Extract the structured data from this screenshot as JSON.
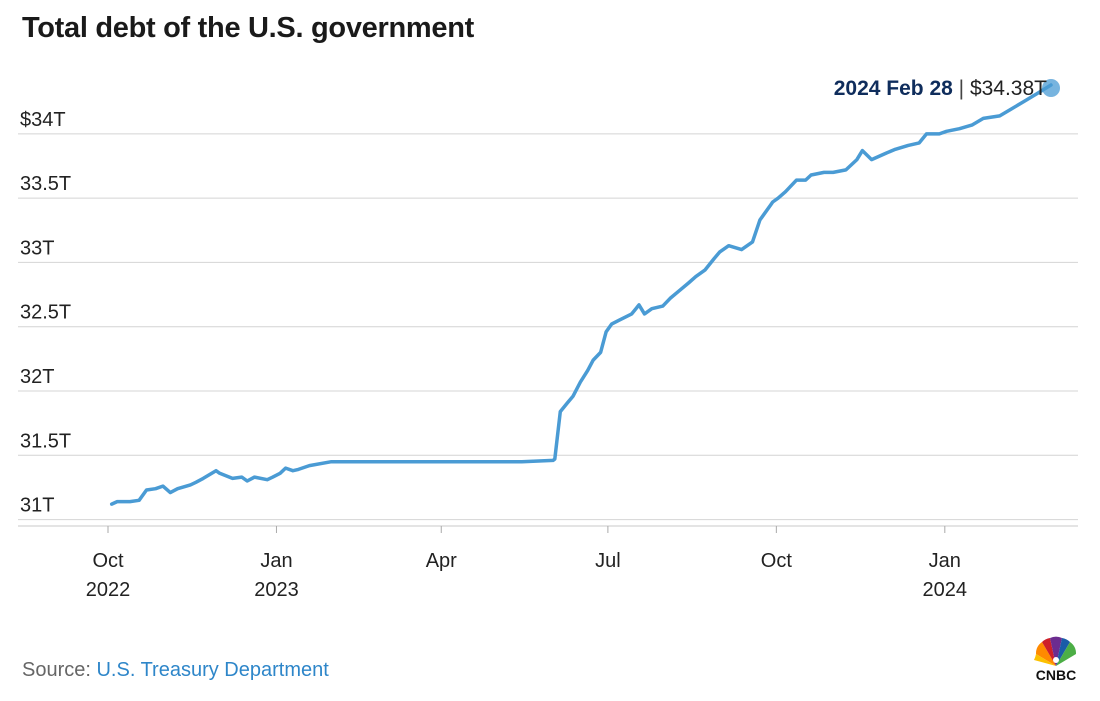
{
  "title": "Total debt of the U.S. government",
  "source": {
    "prefix": "Source: ",
    "link_text": "U.S. Treasury Department"
  },
  "logo": {
    "text": "CNBC",
    "icon": "peacock-icon"
  },
  "colors": {
    "line": "#4a9bd4",
    "grid": "#d4d4d4",
    "callout_date": "#0f2d5c",
    "source_link": "#2e86c9"
  },
  "chart_data": {
    "type": "line",
    "title": "Total debt of the U.S. government",
    "xlabel": "",
    "ylabel": "",
    "ylim": [
      30.95,
      34.45
    ],
    "xlim": [
      "2022-10-01",
      "2024-03-05"
    ],
    "yticks": [
      {
        "value": 31.0,
        "label": "31T"
      },
      {
        "value": 31.5,
        "label": "31.5T"
      },
      {
        "value": 32.0,
        "label": "32T"
      },
      {
        "value": 32.5,
        "label": "32.5T"
      },
      {
        "value": 33.0,
        "label": "33T"
      },
      {
        "value": 33.5,
        "label": "33.5T"
      },
      {
        "value": 34.0,
        "label": "$34T"
      }
    ],
    "xticks": [
      {
        "date": "2022-10-01",
        "label": "Oct",
        "year": "2022"
      },
      {
        "date": "2023-01-01",
        "label": "Jan",
        "year": "2023"
      },
      {
        "date": "2023-04-01",
        "label": "Apr",
        "year": ""
      },
      {
        "date": "2023-07-01",
        "label": "Jul",
        "year": ""
      },
      {
        "date": "2023-10-01",
        "label": "Oct",
        "year": ""
      },
      {
        "date": "2024-01-01",
        "label": "Jan",
        "year": "2024"
      }
    ],
    "grid": true,
    "series": [
      {
        "x": [
          "2022-10-03",
          "2022-10-06",
          "2022-10-13",
          "2022-10-18",
          "2022-10-22",
          "2022-10-27",
          "2022-10-31",
          "2022-11-04",
          "2022-11-08",
          "2022-11-15",
          "2022-11-18",
          "2022-11-22",
          "2022-11-29",
          "2022-12-01",
          "2022-12-08",
          "2022-12-13",
          "2022-12-16",
          "2022-12-20",
          "2022-12-27",
          "2022-12-30",
          "2023-01-03",
          "2023-01-06",
          "2023-01-10",
          "2023-01-13",
          "2023-01-19",
          "2023-01-31",
          "2023-02-15",
          "2023-03-01",
          "2023-03-15",
          "2023-04-01",
          "2023-04-15",
          "2023-05-01",
          "2023-05-15",
          "2023-06-01",
          "2023-06-02",
          "2023-06-05",
          "2023-06-09",
          "2023-06-12",
          "2023-06-16",
          "2023-06-20",
          "2023-06-23",
          "2023-06-27",
          "2023-06-30",
          "2023-07-03",
          "2023-07-07",
          "2023-07-14",
          "2023-07-18",
          "2023-07-21",
          "2023-07-25",
          "2023-07-31",
          "2023-08-04",
          "2023-08-09",
          "2023-08-14",
          "2023-08-18",
          "2023-08-23",
          "2023-08-28",
          "2023-08-31",
          "2023-09-05",
          "2023-09-12",
          "2023-09-18",
          "2023-09-22",
          "2023-09-28",
          "2023-09-29",
          "2023-10-02",
          "2023-10-06",
          "2023-10-12",
          "2023-10-17",
          "2023-10-20",
          "2023-10-27",
          "2023-11-01",
          "2023-11-08",
          "2023-11-14",
          "2023-11-17",
          "2023-11-22",
          "2023-11-30",
          "2023-12-05",
          "2023-12-12",
          "2023-12-18",
          "2023-12-22",
          "2023-12-29",
          "2024-01-02",
          "2024-01-09",
          "2024-01-16",
          "2024-01-22",
          "2024-01-31",
          "2024-02-06",
          "2024-02-13",
          "2024-02-20",
          "2024-02-28"
        ],
        "y": [
          31.12,
          31.14,
          31.14,
          31.15,
          31.23,
          31.24,
          31.26,
          31.21,
          31.24,
          31.27,
          31.29,
          31.32,
          31.38,
          31.36,
          31.32,
          31.33,
          31.3,
          31.33,
          31.31,
          31.33,
          31.36,
          31.4,
          31.38,
          31.39,
          31.42,
          31.45,
          31.45,
          31.45,
          31.45,
          31.45,
          31.45,
          31.45,
          31.45,
          31.46,
          31.47,
          31.84,
          31.91,
          31.96,
          32.07,
          32.16,
          32.24,
          32.3,
          32.46,
          32.52,
          32.55,
          32.6,
          32.67,
          32.6,
          32.64,
          32.66,
          32.72,
          32.78,
          32.84,
          32.89,
          32.94,
          33.03,
          33.08,
          33.13,
          33.1,
          33.16,
          33.33,
          33.45,
          33.47,
          33.5,
          33.55,
          33.64,
          33.64,
          33.68,
          33.7,
          33.7,
          33.72,
          33.8,
          33.87,
          33.8,
          33.85,
          33.88,
          33.91,
          33.93,
          34.0,
          34.0,
          34.02,
          34.04,
          34.07,
          34.12,
          34.14,
          34.19,
          34.25,
          34.31,
          34.38
        ]
      }
    ],
    "annotation": {
      "date_label": "2024 Feb 28",
      "separator": " | ",
      "value_label": "$34.38T"
    }
  }
}
